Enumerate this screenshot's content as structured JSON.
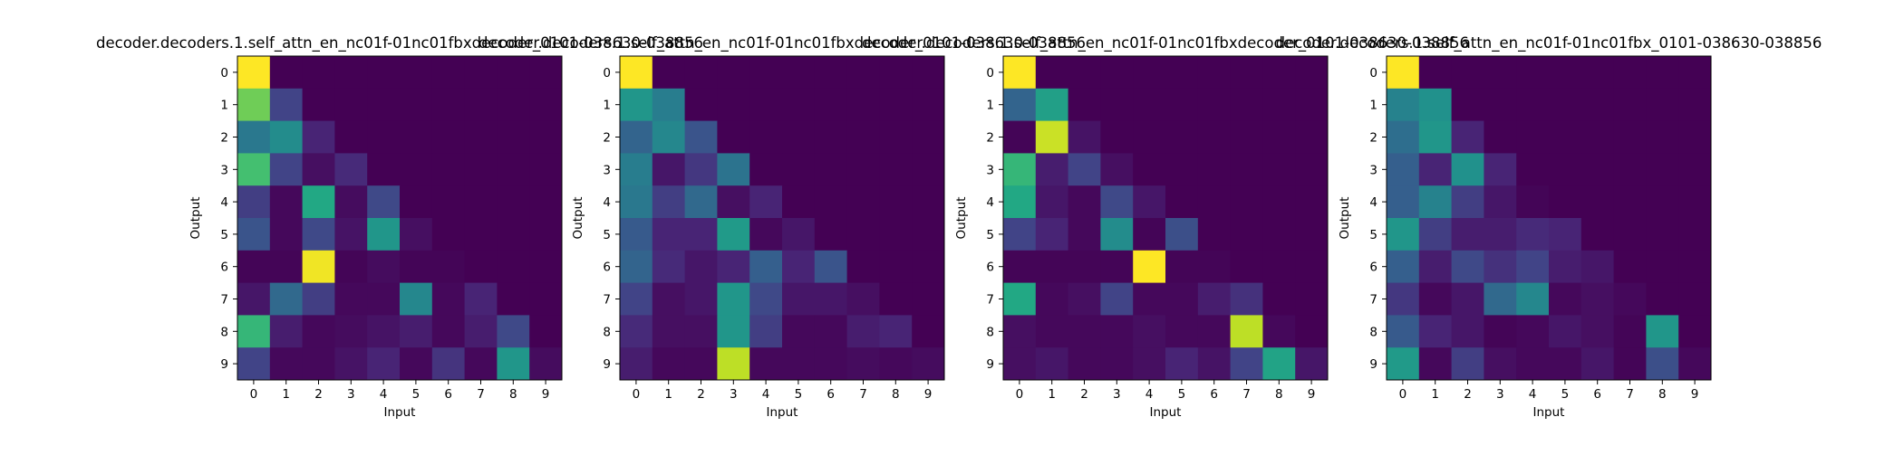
{
  "chart_data": [
    {
      "type": "heatmap",
      "title": "decoder.decoders.1.self_attn_en_nc01f-01nc01fbxdecoder_0101-038630-038856",
      "xlabel": "Input",
      "ylabel": "Output",
      "x_ticks": [
        "0",
        "1",
        "2",
        "3",
        "4",
        "5",
        "6",
        "7",
        "8",
        "9"
      ],
      "y_ticks": [
        "0",
        "1",
        "2",
        "3",
        "4",
        "5",
        "6",
        "7",
        "8",
        "9"
      ],
      "colormap": "viridis",
      "values": [
        [
          1.0,
          0,
          0,
          0,
          0,
          0,
          0,
          0,
          0,
          0
        ],
        [
          0.78,
          0.2,
          0,
          0,
          0,
          0,
          0,
          0,
          0,
          0
        ],
        [
          0.4,
          0.48,
          0.1,
          0,
          0,
          0,
          0,
          0,
          0,
          0
        ],
        [
          0.7,
          0.2,
          0.04,
          0.12,
          0,
          0,
          0,
          0,
          0,
          0
        ],
        [
          0.18,
          0.02,
          0.6,
          0.03,
          0.22,
          0,
          0,
          0,
          0,
          0
        ],
        [
          0.26,
          0.02,
          0.22,
          0.05,
          0.52,
          0.04,
          0,
          0,
          0,
          0
        ],
        [
          0.01,
          0.01,
          0.98,
          0.01,
          0.03,
          0.01,
          0.01,
          0,
          0,
          0
        ],
        [
          0.06,
          0.34,
          0.18,
          0.02,
          0.02,
          0.46,
          0.02,
          0.1,
          0,
          0
        ],
        [
          0.66,
          0.08,
          0.02,
          0.03,
          0.05,
          0.08,
          0.02,
          0.08,
          0.22,
          0
        ],
        [
          0.2,
          0.02,
          0.02,
          0.05,
          0.1,
          0.02,
          0.15,
          0.02,
          0.52,
          0.03
        ]
      ]
    },
    {
      "type": "heatmap",
      "title": "decoder.decoders.1.self_attn_en_nc01f-01nc01fbxdecoder_0101-038630-038856",
      "xlabel": "Input",
      "ylabel": "Output",
      "x_ticks": [
        "0",
        "1",
        "2",
        "3",
        "4",
        "5",
        "6",
        "7",
        "8",
        "9"
      ],
      "y_ticks": [
        "0",
        "1",
        "2",
        "3",
        "4",
        "5",
        "6",
        "7",
        "8",
        "9"
      ],
      "colormap": "viridis",
      "values": [
        [
          1.0,
          0,
          0,
          0,
          0,
          0,
          0,
          0,
          0,
          0
        ],
        [
          0.52,
          0.42,
          0,
          0,
          0,
          0,
          0,
          0,
          0,
          0
        ],
        [
          0.32,
          0.46,
          0.26,
          0,
          0,
          0,
          0,
          0,
          0,
          0
        ],
        [
          0.42,
          0.06,
          0.16,
          0.38,
          0,
          0,
          0,
          0,
          0,
          0
        ],
        [
          0.4,
          0.18,
          0.34,
          0.04,
          0.1,
          0,
          0,
          0,
          0,
          0
        ],
        [
          0.28,
          0.1,
          0.1,
          0.54,
          0.02,
          0.06,
          0,
          0,
          0,
          0
        ],
        [
          0.32,
          0.12,
          0.06,
          0.1,
          0.3,
          0.1,
          0.26,
          0,
          0,
          0
        ],
        [
          0.2,
          0.04,
          0.06,
          0.52,
          0.22,
          0.06,
          0.06,
          0.04,
          0,
          0
        ],
        [
          0.12,
          0.04,
          0.04,
          0.52,
          0.18,
          0.02,
          0.02,
          0.08,
          0.1,
          0
        ],
        [
          0.08,
          0.02,
          0.02,
          0.9,
          0.02,
          0.02,
          0.02,
          0.03,
          0.02,
          0.03
        ]
      ]
    },
    {
      "type": "heatmap",
      "title": "decoder.decoders.1.self_attn_en_nc01f-01nc01fbxdecoder_0101-038630-038856",
      "xlabel": "Input",
      "ylabel": "Output",
      "x_ticks": [
        "0",
        "1",
        "2",
        "3",
        "4",
        "5",
        "6",
        "7",
        "8",
        "9"
      ],
      "y_ticks": [
        "0",
        "1",
        "2",
        "3",
        "4",
        "5",
        "6",
        "7",
        "8",
        "9"
      ],
      "colormap": "viridis",
      "values": [
        [
          1.0,
          0,
          0,
          0,
          0,
          0,
          0,
          0,
          0,
          0
        ],
        [
          0.32,
          0.56,
          0,
          0,
          0,
          0,
          0,
          0,
          0,
          0
        ],
        [
          0.01,
          0.92,
          0.05,
          0,
          0,
          0,
          0,
          0,
          0,
          0
        ],
        [
          0.66,
          0.08,
          0.2,
          0.04,
          0,
          0,
          0,
          0,
          0,
          0
        ],
        [
          0.6,
          0.06,
          0.02,
          0.22,
          0.06,
          0,
          0,
          0,
          0,
          0
        ],
        [
          0.2,
          0.1,
          0.02,
          0.48,
          0.01,
          0.24,
          0,
          0,
          0,
          0
        ],
        [
          0.01,
          0.01,
          0.01,
          0.01,
          1.0,
          0.01,
          0.01,
          0,
          0,
          0
        ],
        [
          0.6,
          0.02,
          0.04,
          0.2,
          0.02,
          0.02,
          0.08,
          0.14,
          0,
          0
        ],
        [
          0.04,
          0.02,
          0.02,
          0.02,
          0.04,
          0.02,
          0.02,
          0.9,
          0.02,
          0
        ],
        [
          0.04,
          0.06,
          0.02,
          0.02,
          0.04,
          0.1,
          0.05,
          0.2,
          0.58,
          0.06
        ]
      ]
    },
    {
      "type": "heatmap",
      "title": "decoder.decoders.1.self_attn_en_nc01f-01nc01fbx_0101-038630-038856",
      "xlabel": "Input",
      "ylabel": "Output",
      "x_ticks": [
        "0",
        "1",
        "2",
        "3",
        "4",
        "5",
        "6",
        "7",
        "8",
        "9"
      ],
      "y_ticks": [
        "0",
        "1",
        "2",
        "3",
        "4",
        "5",
        "6",
        "7",
        "8",
        "9"
      ],
      "colormap": "viridis",
      "values": [
        [
          1.0,
          0,
          0,
          0,
          0,
          0,
          0,
          0,
          0,
          0
        ],
        [
          0.44,
          0.5,
          0,
          0,
          0,
          0,
          0,
          0,
          0,
          0
        ],
        [
          0.36,
          0.52,
          0.1,
          0,
          0,
          0,
          0,
          0,
          0,
          0
        ],
        [
          0.3,
          0.1,
          0.5,
          0.1,
          0,
          0,
          0,
          0,
          0,
          0
        ],
        [
          0.3,
          0.44,
          0.18,
          0.06,
          0.01,
          0,
          0,
          0,
          0,
          0
        ],
        [
          0.52,
          0.18,
          0.08,
          0.08,
          0.12,
          0.1,
          0,
          0,
          0,
          0
        ],
        [
          0.3,
          0.08,
          0.22,
          0.14,
          0.2,
          0.08,
          0.06,
          0,
          0,
          0
        ],
        [
          0.16,
          0.02,
          0.06,
          0.34,
          0.46,
          0.02,
          0.04,
          0.02,
          0,
          0
        ],
        [
          0.28,
          0.1,
          0.06,
          0.01,
          0.02,
          0.06,
          0.04,
          0.01,
          0.52,
          0
        ],
        [
          0.54,
          0.02,
          0.18,
          0.04,
          0.02,
          0.02,
          0.06,
          0.01,
          0.24,
          0.02
        ]
      ]
    }
  ]
}
